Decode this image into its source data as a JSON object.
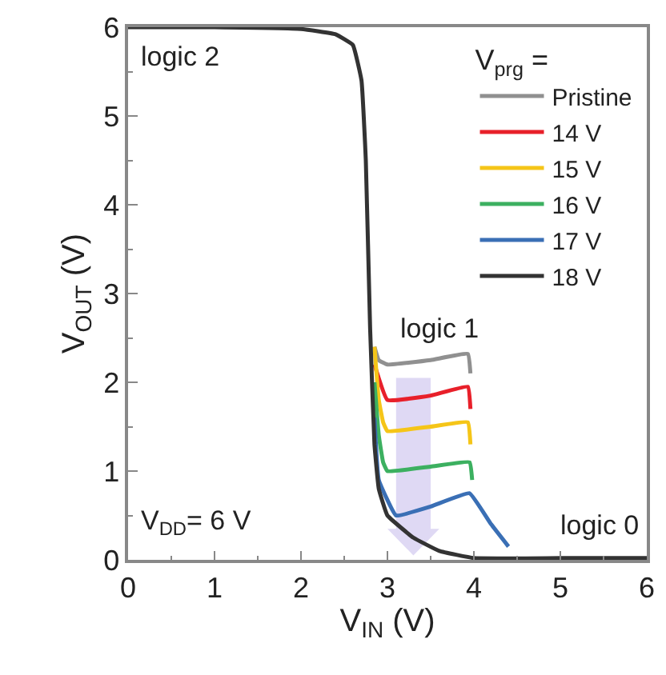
{
  "chart_data": {
    "type": "line",
    "xlabel": "V$_{IN}$ (V)",
    "ylabel": "V$_{OUT}$ (V)",
    "legend_title": "V$_{prg}$ =",
    "legend": "top right",
    "grid": false,
    "marker": "none",
    "line_style": "solid",
    "xlim": [
      0,
      6
    ],
    "ylim": [
      0,
      6
    ],
    "xticks": [
      0,
      1,
      2,
      3,
      4,
      5,
      6
    ],
    "yticks": [
      0,
      1,
      2,
      3,
      4,
      5,
      6
    ],
    "annotations": [
      "logic 2",
      "logic 1",
      "logic 0",
      "V$_{DD}$= 6 V"
    ],
    "series": [
      {
        "name": "Pristine",
        "color": "#909090",
        "x": [
          2.85,
          2.9,
          3.0,
          3.5,
          3.93,
          3.96
        ],
        "values": [
          2.4,
          2.25,
          2.2,
          2.25,
          2.32,
          2.1
        ]
      },
      {
        "name": "14 V",
        "color": "#e8202a",
        "x": [
          2.85,
          3.0,
          3.5,
          3.93,
          3.96
        ],
        "values": [
          2.2,
          1.8,
          1.85,
          1.95,
          1.7
        ]
      },
      {
        "name": "15 V",
        "color": "#f5c518",
        "x": [
          2.85,
          2.9,
          2.95,
          3.0,
          3.5,
          3.93,
          3.96
        ],
        "values": [
          2.4,
          1.8,
          1.55,
          1.45,
          1.5,
          1.55,
          1.3
        ]
      },
      {
        "name": "16 V",
        "color": "#3cb060",
        "x": [
          2.85,
          2.9,
          2.95,
          3.0,
          3.5,
          3.95,
          3.98
        ],
        "values": [
          2.0,
          1.4,
          1.1,
          1.0,
          1.05,
          1.1,
          0.9
        ]
      },
      {
        "name": "17 V",
        "color": "#3a6fb5",
        "x": [
          2.85,
          2.9,
          3.1,
          3.5,
          3.95,
          4.2,
          4.4
        ],
        "values": [
          1.6,
          0.9,
          0.5,
          0.6,
          0.75,
          0.4,
          0.15
        ]
      },
      {
        "name": "18 V",
        "color": "#333333",
        "x": [
          0,
          1,
          2,
          2.4,
          2.6,
          2.7,
          2.75,
          2.8,
          2.85,
          2.9,
          3.0,
          3.3,
          3.6,
          4.0,
          5,
          6
        ],
        "values": [
          6,
          6,
          5.98,
          5.92,
          5.8,
          5.4,
          4.5,
          2.6,
          1.3,
          0.8,
          0.5,
          0.25,
          0.1,
          0.02,
          0.02,
          0.02
        ]
      }
    ]
  }
}
